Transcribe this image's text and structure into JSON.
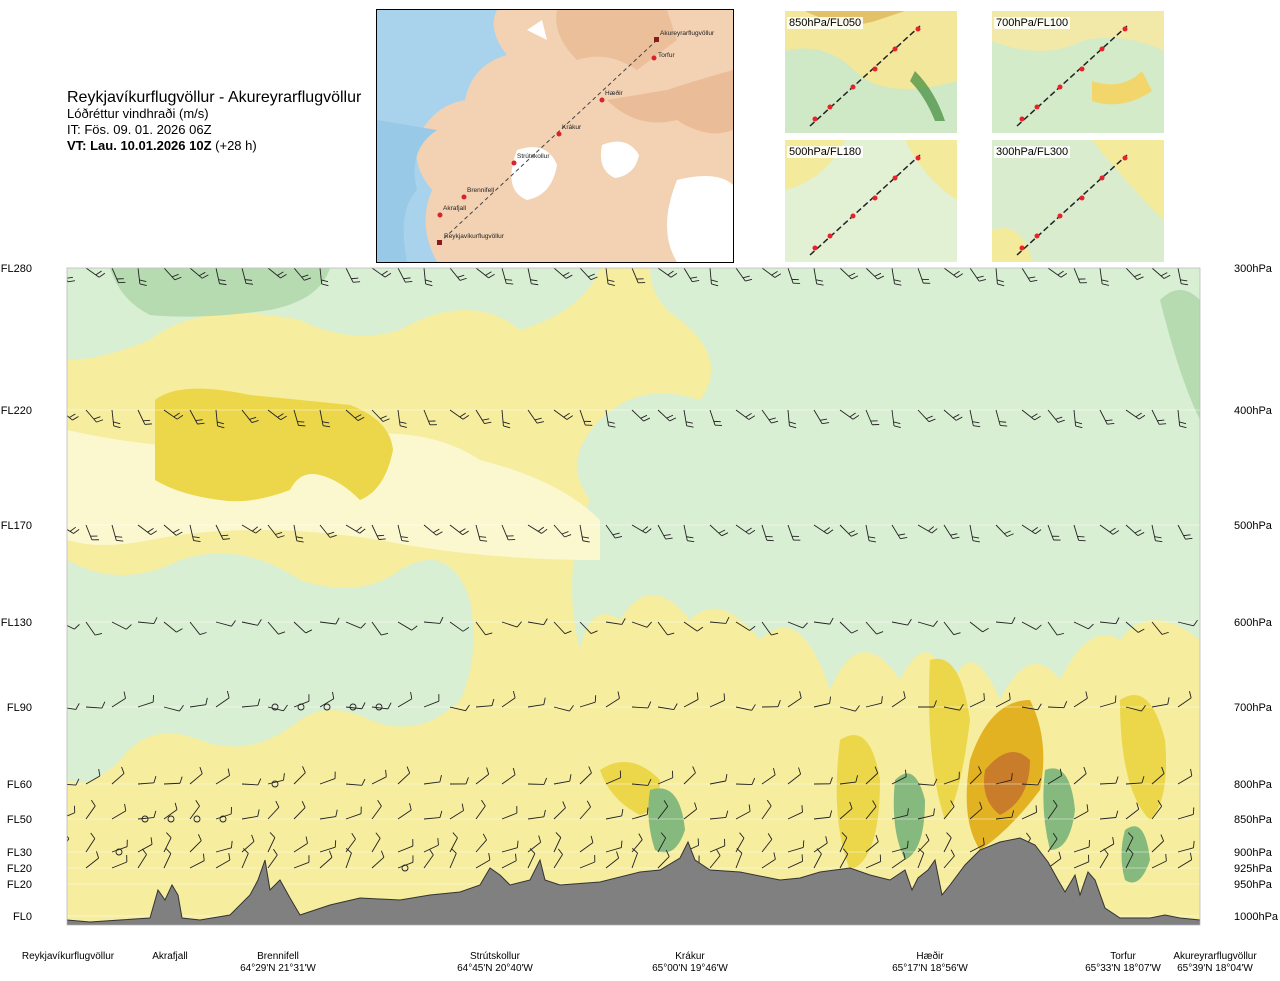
{
  "header": {
    "title": "Reykjavíkurflugvöllur - Akureyrarflugvöllur",
    "subtitle": "Lóðréttur vindhraði (m/s)",
    "issue_time": "IT: Fös. 09. 01. 2026 06Z",
    "valid_time": "VT: Lau. 10.01.2026 10Z",
    "valid_offset": "(+28 h)"
  },
  "route_map": {
    "waypoints": [
      {
        "name": "Akureyrarflugvöllur"
      },
      {
        "name": "Torfur"
      },
      {
        "name": "Hæðir"
      },
      {
        "name": "Krákur"
      },
      {
        "name": "Strútskollur"
      },
      {
        "name": "Brennifell"
      },
      {
        "name": "Akrafjall"
      },
      {
        "name": "Reykjavíkurflugvöllur"
      }
    ]
  },
  "level_maps": [
    {
      "label": "850hPa/FL050"
    },
    {
      "label": "700hPa/FL100"
    },
    {
      "label": "500hPa/FL180"
    },
    {
      "label": "300hPa/FL300"
    }
  ],
  "chart_data": {
    "type": "heatmap",
    "title": "Lóðréttur vindhraði (m/s)",
    "left_axis_labels": [
      "FL280",
      "FL220",
      "FL170",
      "FL130",
      "FL90",
      "FL60",
      "FL50",
      "FL30",
      "FL20",
      "FL20",
      "FL0"
    ],
    "right_axis_labels": [
      "300hPa",
      "400hPa",
      "500hPa",
      "600hPa",
      "700hPa",
      "800hPa",
      "850hPa",
      "900hPa",
      "925hPa",
      "950hPa",
      "1000hPa"
    ],
    "pressure_levels_hpa": [
      300,
      400,
      500,
      600,
      700,
      800,
      850,
      900,
      925,
      950,
      1000
    ],
    "route_points": [
      {
        "name": "Reykjavíkurflugvöllur",
        "coord": ""
      },
      {
        "name": "Akrafjall",
        "coord": ""
      },
      {
        "name": "Brennifell",
        "coord": "64°29'N 21°31'W"
      },
      {
        "name": "Strútskollur",
        "coord": "64°45'N 20°40'W"
      },
      {
        "name": "Krákur",
        "coord": "65°00'N 19°46'W"
      },
      {
        "name": "Hæðir",
        "coord": "65°17'N 18°56'W"
      },
      {
        "name": "Torfur",
        "coord": "65°33'N 18°07'W"
      },
      {
        "name": "Akureyrarflugvöllur",
        "coord": "65°39'N 18°04'W"
      }
    ],
    "colors": {
      "strong_down": "#86b97e",
      "down": "#b6dbb1",
      "weak_down": "#d9efd3",
      "near_zero_down": "#f4fbee",
      "near_zero_up": "#fbf8cf",
      "weak_up": "#f6ed9e",
      "up": "#ecd64a",
      "strong_up": "#e3b222",
      "very_strong_up": "#c97d2b",
      "terrain": "#808080"
    }
  }
}
